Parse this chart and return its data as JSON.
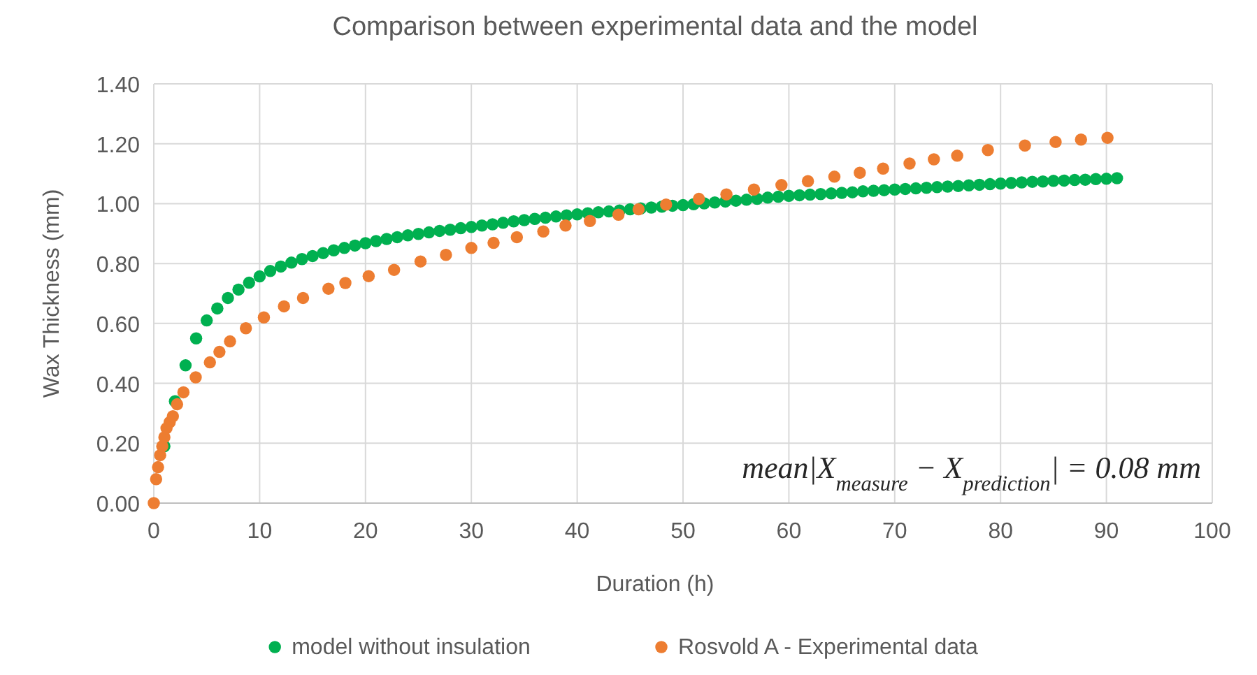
{
  "chart_data": {
    "type": "scatter",
    "title": "Comparison between experimental data and the model",
    "xlabel": "Duration (h)",
    "ylabel": "Wax Thickness (mm)",
    "xlim": [
      0,
      100
    ],
    "xticks": [
      0,
      10,
      20,
      30,
      40,
      50,
      60,
      70,
      80,
      90,
      100
    ],
    "ylim": [
      0,
      1.4
    ],
    "yticks": [
      {
        "value": 0,
        "label": "0.00"
      },
      {
        "value": 0.2,
        "label": "0.20"
      },
      {
        "value": 0.4,
        "label": "0.40"
      },
      {
        "value": 0.6,
        "label": "0.60"
      },
      {
        "value": 0.8,
        "label": "0.80"
      },
      {
        "value": 1,
        "label": "1.00"
      },
      {
        "value": 1.2,
        "label": "1.20"
      },
      {
        "value": 1.4,
        "label": "1.40"
      }
    ],
    "grid": true,
    "legend": "bottom",
    "marker": "circle",
    "annotations": [
      "mean|X$_{measure}$ − X$_{prediction}$| = 0.08 mm"
    ],
    "series": [
      {
        "name": "model without insulation",
        "color": "#00b050",
        "x": [
          1,
          2,
          3,
          4,
          5,
          6,
          7,
          8,
          9,
          10,
          11,
          12,
          13,
          14,
          15,
          16,
          17,
          18,
          19,
          20,
          21,
          22,
          23,
          24,
          25,
          26,
          27,
          28,
          29,
          30,
          31,
          32,
          33,
          34,
          35,
          36,
          37,
          38,
          39,
          40,
          41,
          42,
          43,
          44,
          45,
          46,
          47,
          48,
          49,
          50,
          51,
          52,
          53,
          54,
          55,
          56,
          57,
          58,
          59,
          60,
          61,
          62,
          63,
          64,
          65,
          66,
          67,
          68,
          69,
          70,
          71,
          72,
          73,
          74,
          75,
          76,
          77,
          78,
          79,
          80,
          81,
          82,
          83,
          84,
          85,
          86,
          87,
          88,
          89,
          90,
          91
        ],
        "values": [
          0.19,
          0.34,
          0.46,
          0.55,
          0.61,
          0.65,
          0.685,
          0.713,
          0.736,
          0.757,
          0.775,
          0.79,
          0.803,
          0.815,
          0.825,
          0.835,
          0.844,
          0.852,
          0.86,
          0.868,
          0.875,
          0.882,
          0.888,
          0.894,
          0.899,
          0.904,
          0.909,
          0.913,
          0.918,
          0.922,
          0.927,
          0.931,
          0.936,
          0.941,
          0.945,
          0.949,
          0.953,
          0.957,
          0.961,
          0.964,
          0.968,
          0.971,
          0.974,
          0.977,
          0.981,
          0.984,
          0.987,
          0.99,
          0.993,
          0.995,
          0.998,
          1.001,
          1.004,
          1.007,
          1.01,
          1.013,
          1.016,
          1.02,
          1.023,
          1.026,
          1.028,
          1.03,
          1.032,
          1.034,
          1.036,
          1.038,
          1.041,
          1.043,
          1.045,
          1.047,
          1.049,
          1.051,
          1.053,
          1.055,
          1.057,
          1.059,
          1.061,
          1.063,
          1.065,
          1.067,
          1.069,
          1.071,
          1.073,
          1.074,
          1.076,
          1.077,
          1.079,
          1.08,
          1.082,
          1.083,
          1.085
        ]
      },
      {
        "name": "Rosvold A - Experimental data",
        "color": "#ed7d31",
        "x": [
          0,
          0.22,
          0.4,
          0.6,
          0.8,
          1.0,
          1.2,
          1.5,
          1.8,
          2.2,
          2.8,
          3.96,
          5.3,
          6.2,
          7.2,
          8.7,
          10.4,
          12.3,
          14.1,
          16.5,
          18.1,
          20.3,
          22.7,
          25.2,
          27.6,
          30.0,
          32.1,
          34.3,
          36.8,
          38.9,
          41.2,
          43.9,
          45.8,
          48.4,
          51.5,
          54.1,
          56.7,
          59.3,
          61.8,
          64.3,
          66.7,
          68.9,
          71.4,
          73.7,
          75.9,
          78.8,
          82.3,
          85.2,
          87.6,
          90.1
        ],
        "values": [
          0,
          0.08,
          0.12,
          0.16,
          0.19,
          0.22,
          0.25,
          0.27,
          0.29,
          0.33,
          0.37,
          0.42,
          0.47,
          0.505,
          0.54,
          0.584,
          0.62,
          0.657,
          0.685,
          0.716,
          0.735,
          0.758,
          0.779,
          0.807,
          0.829,
          0.852,
          0.869,
          0.888,
          0.907,
          0.927,
          0.942,
          0.963,
          0.981,
          0.997,
          1.016,
          1.031,
          1.047,
          1.062,
          1.075,
          1.09,
          1.103,
          1.117,
          1.134,
          1.148,
          1.16,
          1.179,
          1.194,
          1.206,
          1.214,
          1.22
        ]
      }
    ]
  }
}
